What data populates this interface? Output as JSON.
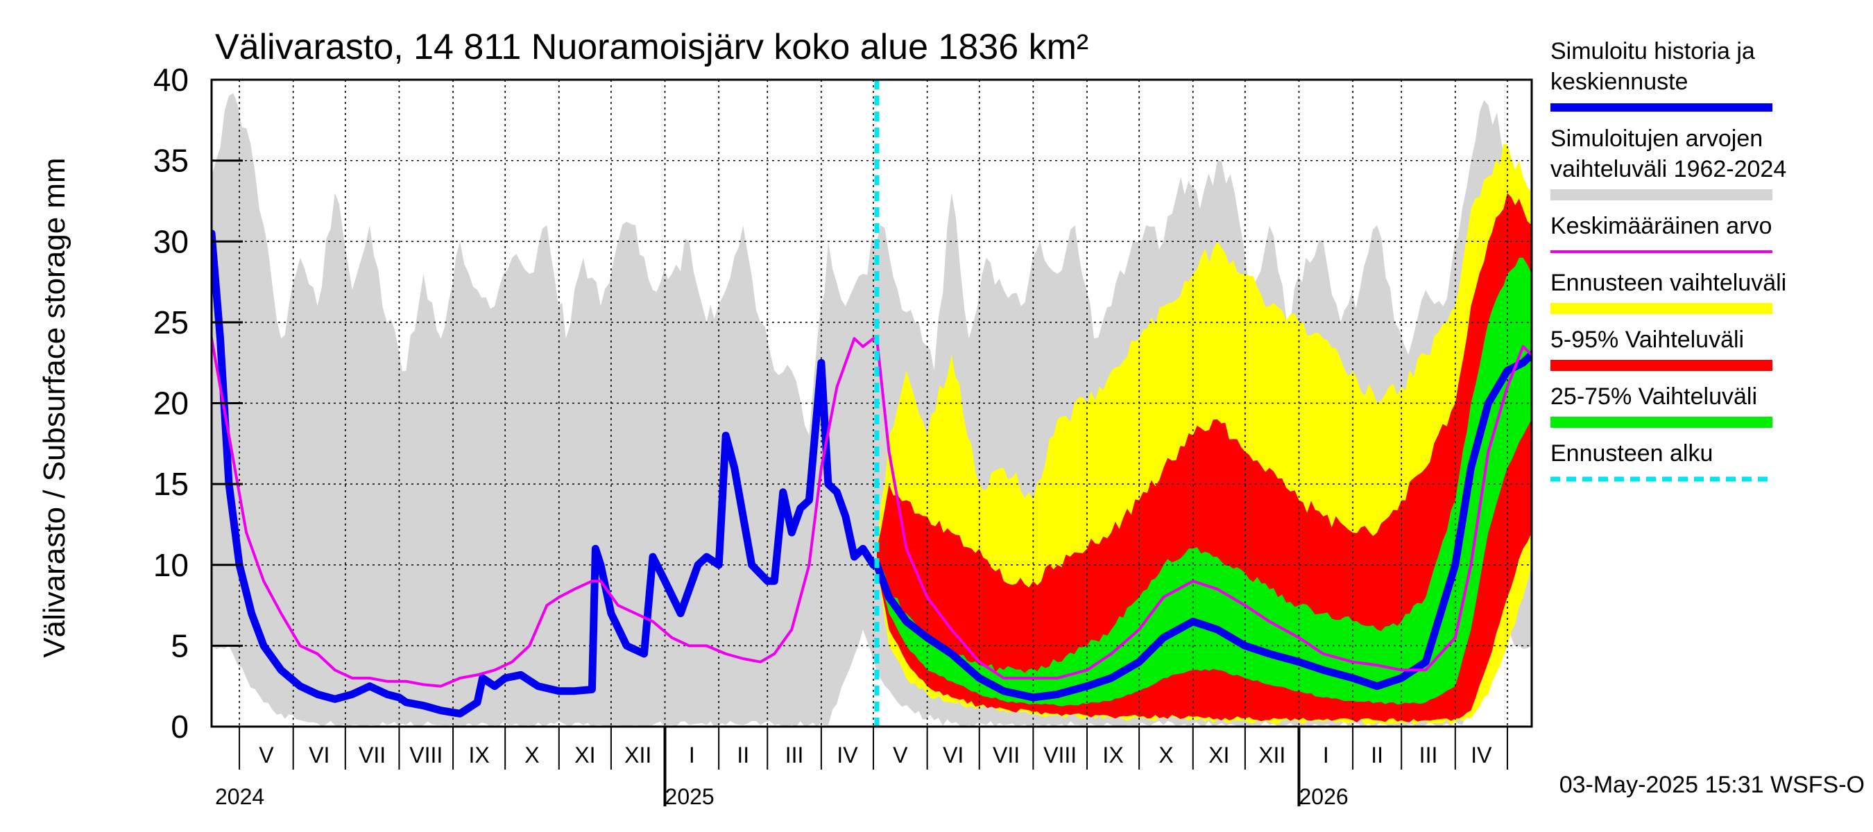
{
  "chart_data": {
    "type": "area",
    "title": "Välivarasto, 14 811 Nuoramoisjärv koko alue 1836 km²",
    "ylabel": "Välivarasto / Subsurface storage  mm",
    "xlabel": "",
    "ylim": [
      0,
      40
    ],
    "yticks": [
      0,
      5,
      10,
      15,
      20,
      25,
      30,
      35,
      40
    ],
    "x_range": [
      "2024-04-15",
      "2026-05-15"
    ],
    "grid": true,
    "legend_position": "right",
    "months": [
      {
        "label": "V",
        "start": "2024-05-01"
      },
      {
        "label": "VI",
        "start": "2024-06-01"
      },
      {
        "label": "VII",
        "start": "2024-07-01"
      },
      {
        "label": "VIII",
        "start": "2024-08-01"
      },
      {
        "label": "IX",
        "start": "2024-09-01"
      },
      {
        "label": "X",
        "start": "2024-10-01"
      },
      {
        "label": "XI",
        "start": "2024-11-01"
      },
      {
        "label": "XII",
        "start": "2024-12-01"
      },
      {
        "label": "I",
        "start": "2025-01-01"
      },
      {
        "label": "II",
        "start": "2025-02-01"
      },
      {
        "label": "III",
        "start": "2025-03-01"
      },
      {
        "label": "IV",
        "start": "2025-04-01"
      },
      {
        "label": "V",
        "start": "2025-05-01"
      },
      {
        "label": "VI",
        "start": "2025-06-01"
      },
      {
        "label": "VII",
        "start": "2025-07-01"
      },
      {
        "label": "VIII",
        "start": "2025-08-01"
      },
      {
        "label": "IX",
        "start": "2025-09-01"
      },
      {
        "label": "X",
        "start": "2025-10-01"
      },
      {
        "label": "XI",
        "start": "2025-11-01"
      },
      {
        "label": "XII",
        "start": "2025-12-01"
      },
      {
        "label": "I",
        "start": "2026-01-01"
      },
      {
        "label": "II",
        "start": "2026-02-01"
      },
      {
        "label": "III",
        "start": "2026-03-01"
      },
      {
        "label": "IV",
        "start": "2026-04-01"
      },
      {
        "label": "",
        "start": "2026-05-01"
      }
    ],
    "years": [
      {
        "label": "2024",
        "date": "2024-04-15",
        "boundary": false
      },
      {
        "label": "2025",
        "date": "2025-01-01",
        "boundary": true
      },
      {
        "label": "2026",
        "date": "2026-01-01",
        "boundary": true
      }
    ],
    "forecast_start": "2025-05-03",
    "colors": {
      "history": "#0000ee",
      "range": "#d4d4d4",
      "mean": "#ee00ee",
      "forecast_range": "#ffff00",
      "p5_95": "#ff0000",
      "p25_75": "#00ee00",
      "forecast_start": "#00e5ee"
    },
    "legend": [
      {
        "key": "history",
        "lines": [
          "Simuloitu historia ja",
          "keskiennuste"
        ],
        "style": "thick"
      },
      {
        "key": "range",
        "lines": [
          "Simuloitujen arvojen",
          "vaihteluväli 1962-2024"
        ],
        "style": "band"
      },
      {
        "key": "mean",
        "lines": [
          "Keskimääräinen arvo"
        ],
        "style": "thin"
      },
      {
        "key": "forecast_range",
        "lines": [
          "Ennusteen vaihteluväli"
        ],
        "style": "band"
      },
      {
        "key": "p5_95",
        "lines": [
          "5-95% Vaihteluväli"
        ],
        "style": "band"
      },
      {
        "key": "p25_75",
        "lines": [
          "25-75% Vaihteluväli"
        ],
        "style": "band"
      },
      {
        "key": "forecast_start",
        "lines": [
          "Ennusteen alku"
        ],
        "style": "dashed"
      }
    ],
    "series": [
      {
        "key": "range",
        "x": [
          "2024-04-15",
          "2024-04-25",
          "2024-05-05",
          "2024-05-15",
          "2024-05-25",
          "2024-06-05",
          "2024-06-15",
          "2024-06-25",
          "2024-07-05",
          "2024-07-15",
          "2024-07-25",
          "2024-08-05",
          "2024-08-15",
          "2024-08-25",
          "2024-09-05",
          "2024-09-15",
          "2024-09-25",
          "2024-10-05",
          "2024-10-15",
          "2024-10-25",
          "2024-11-05",
          "2024-11-15",
          "2024-11-25",
          "2024-12-05",
          "2024-12-15",
          "2024-12-25",
          "2025-01-05",
          "2025-01-15",
          "2025-01-25",
          "2025-02-05",
          "2025-02-15",
          "2025-02-25",
          "2025-03-05",
          "2025-03-15",
          "2025-03-25",
          "2025-04-05",
          "2025-04-15",
          "2025-04-25",
          "2025-05-05",
          "2025-05-15",
          "2025-05-25",
          "2025-06-05",
          "2025-06-15",
          "2025-06-25",
          "2025-07-05",
          "2025-07-15",
          "2025-07-25",
          "2025-08-05",
          "2025-08-15",
          "2025-08-25",
          "2025-09-05",
          "2025-09-15",
          "2025-09-25",
          "2025-10-05",
          "2025-10-15",
          "2025-10-25",
          "2025-11-05",
          "2025-11-15",
          "2025-11-25",
          "2025-12-05",
          "2025-12-15",
          "2025-12-25",
          "2026-01-05",
          "2026-01-15",
          "2026-01-25",
          "2026-02-05",
          "2026-02-15",
          "2026-02-25",
          "2026-03-05",
          "2026-03-15",
          "2026-03-25",
          "2026-04-05",
          "2026-04-15",
          "2026-04-25",
          "2026-05-05",
          "2026-05-15"
        ],
        "upper": [
          34,
          39,
          37,
          31,
          24,
          29,
          26,
          33,
          27,
          31,
          25,
          22,
          28,
          24,
          30,
          27,
          26,
          29,
          28,
          31,
          24,
          29,
          26,
          30,
          31,
          27,
          28,
          30,
          25,
          27,
          31,
          25,
          22,
          22,
          18,
          30,
          26,
          28,
          31,
          27,
          25,
          22,
          33,
          24,
          29,
          27,
          26,
          30,
          28,
          31,
          24,
          26,
          29,
          31,
          30,
          34,
          32,
          35,
          33,
          27,
          31,
          25,
          29,
          30,
          25,
          27,
          31,
          25,
          23,
          27,
          26,
          32,
          38,
          38,
          30,
          27
        ],
        "lower": [
          5,
          5,
          3,
          1.5,
          0.8,
          0.4,
          0.2,
          0.1,
          0.1,
          0.1,
          0.1,
          0.1,
          0.1,
          0.1,
          0.1,
          0.1,
          0.1,
          0.1,
          0.1,
          0.1,
          0.1,
          0.1,
          0.1,
          0.1,
          0.1,
          0.1,
          0.1,
          0.1,
          0.1,
          0.1,
          0.1,
          0.1,
          0.1,
          0.1,
          0.1,
          0.1,
          3,
          6,
          3,
          1.5,
          0.8,
          0.4,
          0.2,
          0.1,
          0.1,
          0.1,
          0.1,
          0.1,
          0.1,
          0.1,
          0.1,
          0.1,
          0.1,
          0.1,
          0.1,
          0.1,
          0.1,
          0.1,
          0.1,
          0.1,
          0.1,
          0.1,
          0.1,
          0.1,
          0.1,
          0.1,
          0.1,
          0.1,
          0.1,
          0.1,
          0.1,
          0.1,
          3,
          7,
          5,
          5
        ]
      },
      {
        "key": "forecast_range",
        "x": [
          "2025-05-03",
          "2025-05-10",
          "2025-05-20",
          "2025-06-01",
          "2025-06-15",
          "2025-07-01",
          "2025-07-15",
          "2025-08-01",
          "2025-08-15",
          "2025-09-01",
          "2025-09-15",
          "2025-10-01",
          "2025-10-15",
          "2025-11-01",
          "2025-11-15",
          "2025-12-01",
          "2025-12-15",
          "2026-01-01",
          "2026-01-15",
          "2026-02-01",
          "2026-02-15",
          "2026-03-01",
          "2026-03-15",
          "2026-04-01",
          "2026-04-10",
          "2026-04-20",
          "2026-05-01",
          "2026-05-10",
          "2026-05-15"
        ],
        "upper": [
          11,
          18,
          22,
          18,
          23,
          15,
          16,
          14,
          19,
          20,
          22,
          24,
          26,
          28,
          30,
          28,
          26,
          25,
          24,
          22,
          20,
          21,
          23,
          26,
          32,
          34,
          36,
          34,
          33
        ],
        "lower": [
          10,
          5,
          3,
          2,
          1.5,
          1.2,
          1,
          0.8,
          0.7,
          0.6,
          0.5,
          0.5,
          0.5,
          0.5,
          0.4,
          0.4,
          0.3,
          0.3,
          0.3,
          0.3,
          0.3,
          0.3,
          0.3,
          0.3,
          0.5,
          2,
          5,
          8,
          10
        ]
      },
      {
        "key": "p5_95",
        "x": [
          "2025-05-03",
          "2025-05-10",
          "2025-05-20",
          "2025-06-01",
          "2025-06-15",
          "2025-07-01",
          "2025-07-15",
          "2025-08-01",
          "2025-08-15",
          "2025-09-01",
          "2025-09-15",
          "2025-10-01",
          "2025-10-15",
          "2025-11-01",
          "2025-11-15",
          "2025-12-01",
          "2025-12-15",
          "2026-01-01",
          "2026-01-15",
          "2026-02-01",
          "2026-02-15",
          "2026-03-01",
          "2026-03-15",
          "2026-04-01",
          "2026-04-10",
          "2026-04-20",
          "2026-05-01",
          "2026-05-10",
          "2026-05-15"
        ],
        "upper": [
          11,
          15,
          14,
          13,
          12,
          11,
          9,
          9,
          10,
          11,
          12,
          14,
          16,
          18,
          19,
          17,
          16,
          14,
          13,
          12,
          12,
          14,
          16,
          20,
          26,
          30,
          33,
          32,
          31
        ],
        "lower": [
          10,
          6,
          4,
          2.5,
          1.8,
          1.3,
          1.1,
          0.9,
          0.8,
          0.7,
          0.6,
          0.6,
          0.6,
          0.6,
          0.5,
          0.5,
          0.4,
          0.4,
          0.4,
          0.4,
          0.4,
          0.4,
          0.4,
          0.5,
          1,
          4,
          8,
          11,
          12
        ]
      },
      {
        "key": "p25_75",
        "x": [
          "2025-05-03",
          "2025-05-10",
          "2025-05-20",
          "2025-06-01",
          "2025-06-15",
          "2025-07-01",
          "2025-07-15",
          "2025-08-01",
          "2025-08-15",
          "2025-09-01",
          "2025-09-15",
          "2025-10-01",
          "2025-10-15",
          "2025-11-01",
          "2025-11-15",
          "2025-12-01",
          "2025-12-15",
          "2026-01-01",
          "2026-01-15",
          "2026-02-01",
          "2026-02-15",
          "2026-03-01",
          "2026-03-15",
          "2026-04-01",
          "2026-04-10",
          "2026-04-20",
          "2026-05-01",
          "2026-05-10",
          "2026-05-15"
        ],
        "upper": [
          10.5,
          8.5,
          7,
          5.5,
          4.5,
          3.8,
          3.5,
          3.6,
          4,
          5,
          6,
          8,
          10,
          11,
          10.5,
          9.5,
          8.5,
          7.5,
          7,
          6.5,
          6,
          6.5,
          8,
          14,
          20,
          25,
          28,
          29,
          28
        ],
        "lower": [
          10,
          7,
          5,
          3.5,
          2.8,
          2,
          1.6,
          1.4,
          1.3,
          1.4,
          1.6,
          2.2,
          3,
          3.5,
          3.5,
          3,
          2.6,
          2.2,
          1.8,
          1.6,
          1.5,
          1.4,
          1.5,
          2.5,
          6,
          12,
          16,
          18,
          19
        ]
      }
    ],
    "lines": [
      {
        "key": "history",
        "x": [
          "2024-04-15",
          "2024-04-20",
          "2024-04-25",
          "2024-05-01",
          "2024-05-08",
          "2024-05-15",
          "2024-05-25",
          "2024-06-05",
          "2024-06-15",
          "2024-06-25",
          "2024-07-05",
          "2024-07-15",
          "2024-07-25",
          "2024-08-01",
          "2024-08-05",
          "2024-08-15",
          "2024-08-25",
          "2024-09-05",
          "2024-09-15",
          "2024-09-18",
          "2024-09-25",
          "2024-10-01",
          "2024-10-10",
          "2024-10-20",
          "2024-11-01",
          "2024-11-10",
          "2024-11-20",
          "2024-11-22",
          "2024-11-25",
          "2024-12-01",
          "2024-12-10",
          "2024-12-20",
          "2024-12-25",
          "2025-01-01",
          "2025-01-10",
          "2025-01-20",
          "2025-01-25",
          "2025-02-01",
          "2025-02-05",
          "2025-02-10",
          "2025-02-20",
          "2025-03-01",
          "2025-03-05",
          "2025-03-10",
          "2025-03-15",
          "2025-03-20",
          "2025-03-25",
          "2025-04-01",
          "2025-04-05",
          "2025-04-10",
          "2025-04-15",
          "2025-04-20",
          "2025-04-25",
          "2025-05-01",
          "2025-05-03",
          "2025-05-10",
          "2025-05-20",
          "2025-06-01",
          "2025-06-15",
          "2025-07-01",
          "2025-07-15",
          "2025-08-01",
          "2025-08-15",
          "2025-09-01",
          "2025-09-15",
          "2025-10-01",
          "2025-10-15",
          "2025-11-01",
          "2025-11-15",
          "2025-12-01",
          "2025-12-15",
          "2026-01-01",
          "2026-01-15",
          "2026-02-01",
          "2026-02-15",
          "2026-03-01",
          "2026-03-15",
          "2026-04-01",
          "2026-04-10",
          "2026-04-20",
          "2026-05-01",
          "2026-05-10",
          "2026-05-15"
        ],
        "y": [
          30.5,
          24,
          15,
          10,
          7,
          5,
          3.5,
          2.5,
          2,
          1.7,
          2,
          2.5,
          2,
          1.8,
          1.5,
          1.3,
          1,
          0.8,
          1.5,
          3,
          2.5,
          3,
          3.2,
          2.5,
          2.2,
          2.2,
          2.3,
          11,
          10,
          7,
          5,
          4.5,
          10.5,
          9,
          7,
          10,
          10.5,
          10,
          18,
          16,
          10,
          9,
          9,
          14.5,
          12,
          13.5,
          14,
          22.5,
          15,
          14.5,
          13,
          10.5,
          11,
          10,
          10,
          8,
          6.5,
          5.5,
          4.5,
          3,
          2.2,
          1.8,
          2,
          2.5,
          3,
          4,
          5.5,
          6.5,
          6,
          5,
          4.5,
          4,
          3.5,
          3,
          2.5,
          3,
          4,
          10,
          16,
          20,
          22,
          22.5,
          23
        ]
      },
      {
        "key": "mean",
        "x": [
          "2024-04-15",
          "2024-04-25",
          "2024-05-05",
          "2024-05-15",
          "2024-05-25",
          "2024-06-05",
          "2024-06-15",
          "2024-06-25",
          "2024-07-05",
          "2024-07-15",
          "2024-07-25",
          "2024-08-05",
          "2024-08-15",
          "2024-08-25",
          "2024-09-05",
          "2024-09-15",
          "2024-09-25",
          "2024-10-05",
          "2024-10-15",
          "2024-10-25",
          "2024-11-01",
          "2024-11-10",
          "2024-11-20",
          "2024-11-25",
          "2024-12-05",
          "2024-12-15",
          "2024-12-25",
          "2025-01-05",
          "2025-01-15",
          "2025-01-25",
          "2025-02-05",
          "2025-02-15",
          "2025-02-25",
          "2025-03-05",
          "2025-03-15",
          "2025-03-25",
          "2025-04-01",
          "2025-04-10",
          "2025-04-20",
          "2025-04-25",
          "2025-05-01",
          "2025-05-03",
          "2025-05-10",
          "2025-05-20",
          "2025-06-01",
          "2025-06-15",
          "2025-07-01",
          "2025-07-15",
          "2025-08-01",
          "2025-08-15",
          "2025-09-01",
          "2025-09-15",
          "2025-10-01",
          "2025-10-15",
          "2025-11-01",
          "2025-11-15",
          "2025-12-01",
          "2025-12-15",
          "2026-01-01",
          "2026-01-15",
          "2026-02-01",
          "2026-02-15",
          "2026-03-01",
          "2026-03-15",
          "2026-04-01",
          "2026-04-10",
          "2026-04-20",
          "2026-05-01",
          "2026-05-10",
          "2026-05-15"
        ],
        "y": [
          24,
          18,
          12,
          9,
          7,
          5,
          4.5,
          3.5,
          3,
          3,
          2.8,
          2.8,
          2.6,
          2.5,
          3,
          3.2,
          3.5,
          4,
          5,
          7.5,
          8,
          8.5,
          9,
          9,
          7.5,
          7,
          6.5,
          5.5,
          5,
          5,
          4.5,
          4.2,
          4,
          4.5,
          6,
          10,
          16,
          21,
          24,
          23.5,
          24,
          24,
          17,
          11,
          8,
          6,
          4,
          3,
          3,
          3,
          3.5,
          4.5,
          6,
          8,
          9,
          8.5,
          7.5,
          6.5,
          5.5,
          4.5,
          4,
          3.8,
          3.5,
          3.5,
          5.5,
          10,
          17,
          21,
          23.5,
          23
        ]
      }
    ]
  },
  "footer": {
    "timestamp": "03-May-2025 15:31 WSFS-O"
  }
}
